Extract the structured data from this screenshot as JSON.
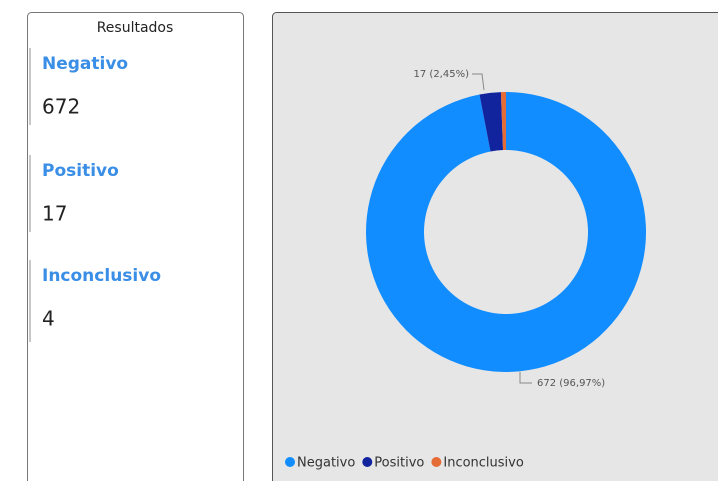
{
  "cards": {
    "title": "Resultados",
    "items": [
      {
        "label": "Negativo",
        "value": 672
      },
      {
        "label": "Positivo",
        "value": 17
      },
      {
        "label": "Inconclusivo",
        "value": 4
      }
    ]
  },
  "chart_data": {
    "type": "donut",
    "categories": [
      "Negativo",
      "Positivo",
      "Inconclusivo"
    ],
    "values": [
      672,
      17,
      4
    ],
    "value_labels": [
      "672 (96,97%)",
      "17 (2,45%)",
      null
    ],
    "colors": [
      "#118dff",
      "#12239e",
      "#e66c37"
    ],
    "legend": "bottom-left"
  }
}
